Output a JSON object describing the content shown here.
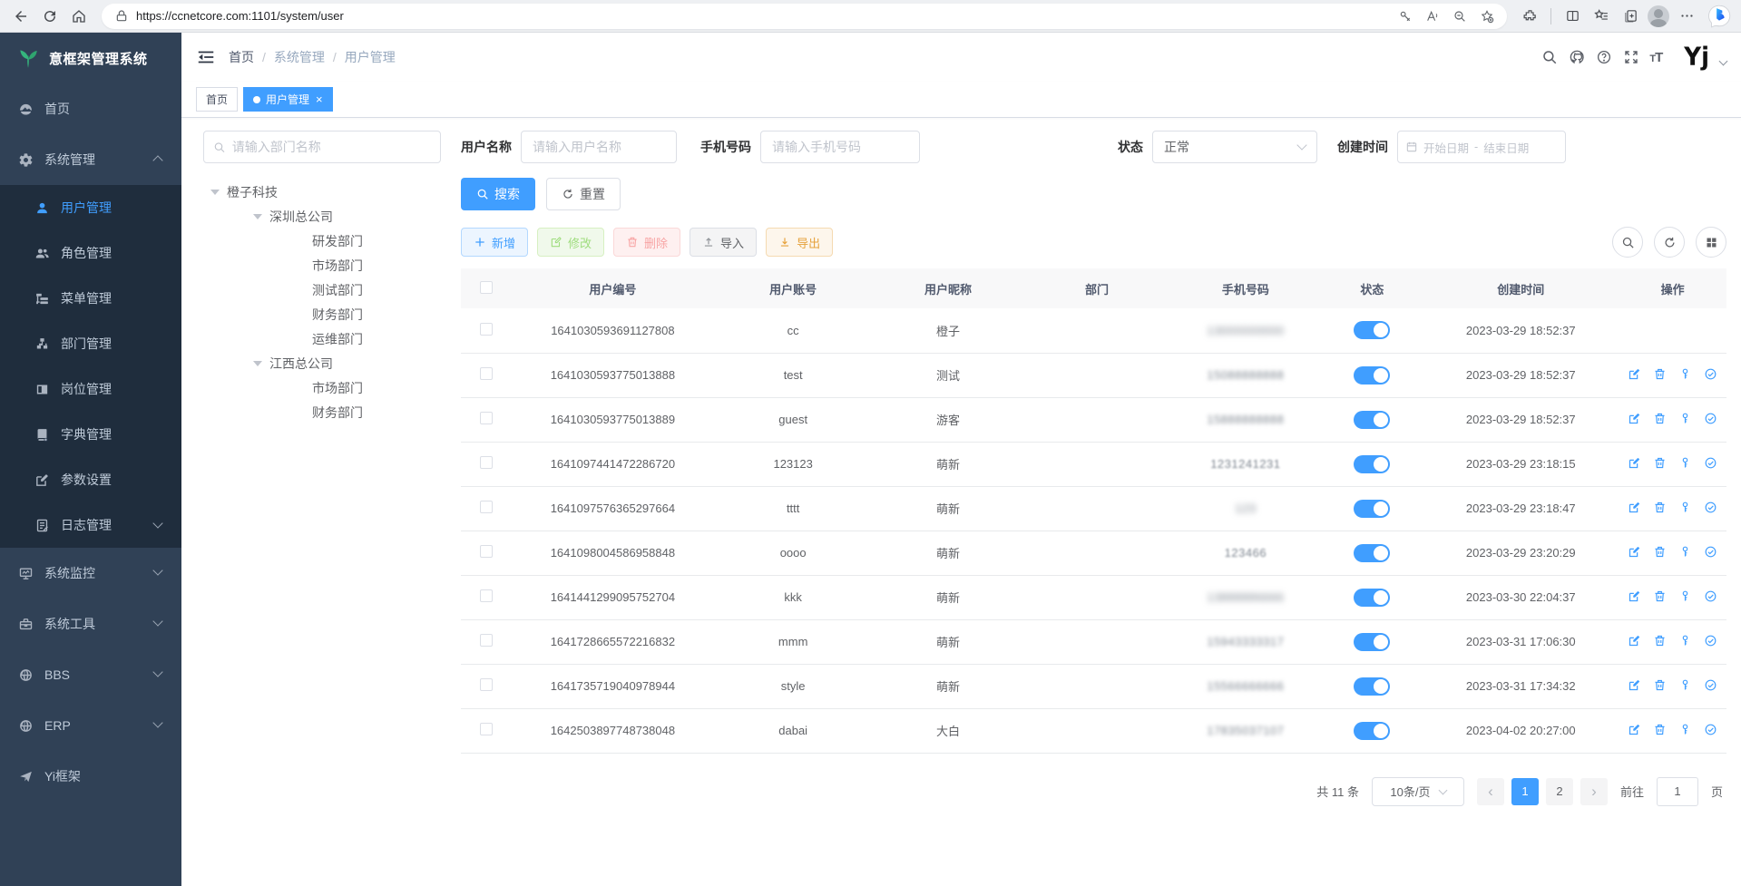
{
  "browser": {
    "url": "https://ccnetcore.com:1101/system/user"
  },
  "sidebar": {
    "logo_text": "意框架管理系统",
    "items": [
      {
        "key": "home",
        "label": "首页",
        "icon": "dashboard-icon",
        "depth": 0
      },
      {
        "key": "system",
        "label": "系统管理",
        "icon": "gear-icon",
        "depth": 0,
        "arrow": "up"
      },
      {
        "key": "user",
        "label": "用户管理",
        "icon": "user-icon",
        "depth": 1,
        "active": true
      },
      {
        "key": "role",
        "label": "角色管理",
        "icon": "peoples-icon",
        "depth": 1
      },
      {
        "key": "menu",
        "label": "菜单管理",
        "icon": "tree-table-icon",
        "depth": 1
      },
      {
        "key": "dept",
        "label": "部门管理",
        "icon": "org-tree-icon",
        "depth": 1
      },
      {
        "key": "post",
        "label": "岗位管理",
        "icon": "post-icon",
        "depth": 1
      },
      {
        "key": "dict",
        "label": "字典管理",
        "icon": "dict-icon",
        "depth": 1
      },
      {
        "key": "param",
        "label": "参数设置",
        "icon": "edit-icon",
        "depth": 1
      },
      {
        "key": "log",
        "label": "日志管理",
        "icon": "log-icon",
        "depth": 1,
        "arrow": "down"
      },
      {
        "key": "monitor",
        "label": "系统监控",
        "icon": "monitor-icon",
        "depth": 0,
        "arrow": "down"
      },
      {
        "key": "tools",
        "label": "系统工具",
        "icon": "toolbox-icon",
        "depth": 0,
        "arrow": "down"
      },
      {
        "key": "bbs",
        "label": "BBS",
        "icon": "globe-icon",
        "depth": 0,
        "arrow": "down"
      },
      {
        "key": "erp",
        "label": "ERP",
        "icon": "globe-icon",
        "depth": 0,
        "arrow": "down"
      },
      {
        "key": "yi",
        "label": "Yi框架",
        "icon": "send-icon",
        "depth": 0
      }
    ]
  },
  "navbar": {
    "breadcrumb": [
      "首页",
      "系统管理",
      "用户管理"
    ],
    "avatar_text": "Yj"
  },
  "tabs": [
    {
      "label": "首页",
      "active": false,
      "closable": false
    },
    {
      "label": "用户管理",
      "active": true,
      "closable": true
    }
  ],
  "tree": {
    "search_placeholder": "请输入部门名称",
    "nodes": [
      {
        "label": "橙子科技",
        "depth": 0,
        "expandable": true
      },
      {
        "label": "深圳总公司",
        "depth": 1,
        "expandable": true
      },
      {
        "label": "研发部门",
        "depth": 2,
        "expandable": false
      },
      {
        "label": "市场部门",
        "depth": 2,
        "expandable": false
      },
      {
        "label": "测试部门",
        "depth": 2,
        "expandable": false
      },
      {
        "label": "财务部门",
        "depth": 2,
        "expandable": false
      },
      {
        "label": "运维部门",
        "depth": 2,
        "expandable": false
      },
      {
        "label": "江西总公司",
        "depth": 1,
        "expandable": true
      },
      {
        "label": "市场部门",
        "depth": 2,
        "expandable": false
      },
      {
        "label": "财务部门",
        "depth": 2,
        "expandable": false
      }
    ]
  },
  "filters": {
    "username_label": "用户名称",
    "username_placeholder": "请输入用户名称",
    "phone_label": "手机号码",
    "phone_placeholder": "请输入手机号码",
    "status_label": "状态",
    "status_value": "正常",
    "created_label": "创建时间",
    "date_start_placeholder": "开始日期",
    "date_separator": "-",
    "date_end_placeholder": "结束日期"
  },
  "toolbar": {
    "search_label": "搜索",
    "reset_label": "重置",
    "add_label": "新增",
    "edit_label": "修改",
    "delete_label": "删除",
    "import_label": "导入",
    "export_label": "导出"
  },
  "table": {
    "columns": [
      "用户编号",
      "用户账号",
      "用户昵称",
      "部门",
      "手机号码",
      "状态",
      "创建时间",
      "操作"
    ],
    "rows": [
      {
        "id": "1641030593691127808",
        "account": "cc",
        "nickname": "橙子",
        "dept": "",
        "phone": "13000000000",
        "phone_blur": "heavy",
        "status": true,
        "created": "2023-03-29 18:52:37",
        "actions": false
      },
      {
        "id": "1641030593775013888",
        "account": "test",
        "nickname": "测试",
        "dept": "",
        "phone": "15088888888",
        "phone_blur": "med",
        "status": true,
        "created": "2023-03-29 18:52:37",
        "actions": true
      },
      {
        "id": "1641030593775013889",
        "account": "guest",
        "nickname": "游客",
        "dept": "",
        "phone": "15888888888",
        "phone_blur": "med",
        "status": true,
        "created": "2023-03-29 18:52:37",
        "actions": true
      },
      {
        "id": "1641097441472286720",
        "account": "123123",
        "nickname": "萌新",
        "dept": "",
        "phone": "1231241231",
        "phone_blur": "light",
        "status": true,
        "created": "2023-03-29 23:18:15",
        "actions": true
      },
      {
        "id": "1641097576365297664",
        "account": "tttt",
        "nickname": "萌新",
        "dept": "",
        "phone": "123",
        "phone_blur": "heavy",
        "status": true,
        "created": "2023-03-29 23:18:47",
        "actions": true
      },
      {
        "id": "1641098004586958848",
        "account": "oooo",
        "nickname": "萌新",
        "dept": "",
        "phone": "123466",
        "phone_blur": "light",
        "status": true,
        "created": "2023-03-29 23:20:29",
        "actions": true
      },
      {
        "id": "1641441299095752704",
        "account": "kkk",
        "nickname": "萌新",
        "dept": "",
        "phone": "13888886666",
        "phone_blur": "heavy",
        "status": true,
        "created": "2023-03-30 22:04:37",
        "actions": true
      },
      {
        "id": "1641728665572216832",
        "account": "mmm",
        "nickname": "萌新",
        "dept": "",
        "phone": "15943333317",
        "phone_blur": "med",
        "status": true,
        "created": "2023-03-31 17:06:30",
        "actions": true
      },
      {
        "id": "1641735719040978944",
        "account": "style",
        "nickname": "萌新",
        "dept": "",
        "phone": "15566666666",
        "phone_blur": "med",
        "status": true,
        "created": "2023-03-31 17:34:32",
        "actions": true
      },
      {
        "id": "1642503897748738048",
        "account": "dabai",
        "nickname": "大白",
        "dept": "",
        "phone": "17835037107",
        "phone_blur": "med",
        "status": true,
        "created": "2023-04-02 20:27:00",
        "actions": true
      }
    ],
    "action_icons": [
      "edit-icon",
      "delete-icon",
      "reset-password-icon",
      "assign-role-icon"
    ]
  },
  "pagination": {
    "total": "共 11 条",
    "page_size": "10条/页",
    "pages": [
      "1",
      "2"
    ],
    "current": "1",
    "goto_label": "前往",
    "goto_value": "1",
    "goto_suffix": "页"
  },
  "colors": {
    "accent": "#409eff",
    "sidebar_bg": "#304156",
    "submenu_bg": "#1f2d3d",
    "toggle_on": "#409eff"
  }
}
